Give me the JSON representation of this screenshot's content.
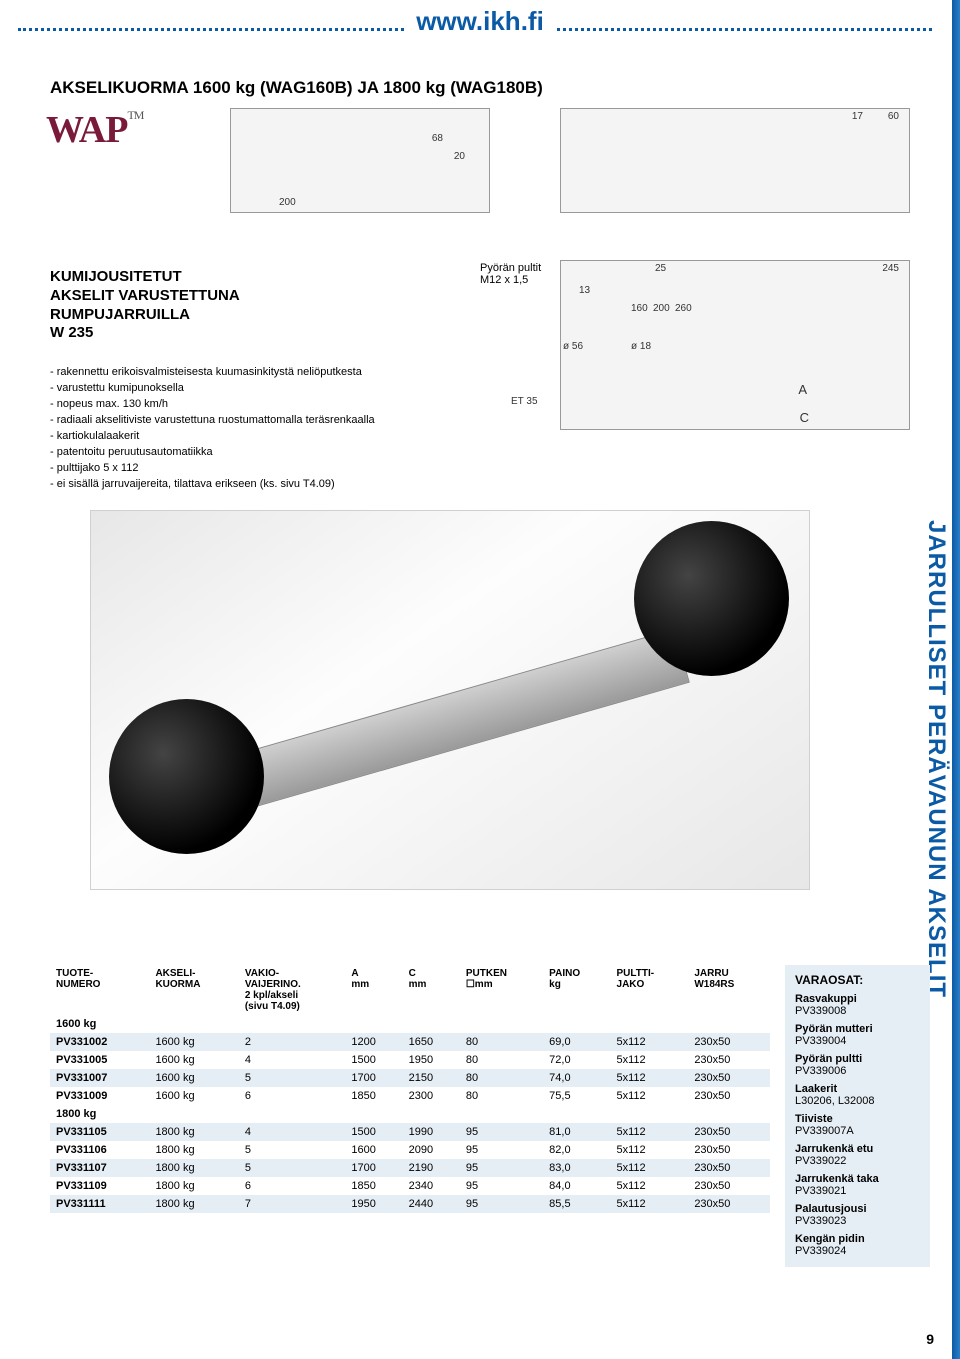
{
  "header_url": "www.ikh.fi",
  "main_title": "AKSELIKUORMA 1600 kg (WAG160B) JA 1800 kg (WAG180B)",
  "logo_text": "WAP",
  "logo_tm": "TM",
  "subheading_line1": "KUMIJOUSITETUT",
  "subheading_line2": "AKSELIT VARUSTETTUNA",
  "subheading_line3": "RUMPUJARRUILLA",
  "subheading_line4": "W 235",
  "features": [
    "rakennettu erikoisvalmisteisesta kuumasinkitystä neliöputkesta",
    "varustettu kumipunoksella",
    "nopeus max. 130 km/h",
    "radiaali akselitiviste varustettuna ruostumattomalla teräsrenkaalla",
    "kartiokulalaakerit",
    "patentoitu peruutusautomatiikka",
    "pulttijako 5 x 112",
    "ei sisällä jarruvaijereita, tilattava erikseen (ks. sivu T4.09)"
  ],
  "bolt_label1": "Pyörän pultit",
  "bolt_label2": "M12 x 1,5",
  "diag1": {
    "d1": "68",
    "d2": "20",
    "d3": "200"
  },
  "diag2": {
    "d1": "17",
    "d2": "60"
  },
  "diag3": {
    "d1": "25",
    "d2": "245",
    "d3": "13",
    "d4": "160",
    "d5": "200",
    "d6": "260",
    "d7": "ø 56",
    "d8": "ø 18",
    "d9": "ET 35",
    "a": "A",
    "c": "C"
  },
  "side_text": "JARRULLISET PERÄVAUNUN AKSELIT",
  "table": {
    "headers": {
      "c1a": "TUOTE-",
      "c1b": "NUMERO",
      "c2a": "AKSELI-",
      "c2b": "KUORMA",
      "c3a": "VAKIO-",
      "c3b": "VAIJERINO.",
      "c3c": "2 kpl/akseli",
      "c3d": "(sivu T4.09)",
      "c4a": "A",
      "c4b": "mm",
      "c5a": "C",
      "c5b": "mm",
      "c6a": "PUTKEN",
      "c6b": "☐mm",
      "c7a": "PAINO",
      "c7b": "kg",
      "c8a": "PULTTI-",
      "c8b": "JAKO",
      "c9a": "JARRU",
      "c9b": "W184RS"
    },
    "section1_label": "1600 kg",
    "rows1": [
      {
        "code": "PV331002",
        "load": "1600 kg",
        "wire": "2",
        "a": "1200",
        "c": "1650",
        "tube": "80",
        "weight": "69,0",
        "bolt": "5x112",
        "brake": "230x50"
      },
      {
        "code": "PV331005",
        "load": "1600 kg",
        "wire": "4",
        "a": "1500",
        "c": "1950",
        "tube": "80",
        "weight": "72,0",
        "bolt": "5x112",
        "brake": "230x50"
      },
      {
        "code": "PV331007",
        "load": "1600 kg",
        "wire": "5",
        "a": "1700",
        "c": "2150",
        "tube": "80",
        "weight": "74,0",
        "bolt": "5x112",
        "brake": "230x50"
      },
      {
        "code": "PV331009",
        "load": "1600 kg",
        "wire": "6",
        "a": "1850",
        "c": "2300",
        "tube": "80",
        "weight": "75,5",
        "bolt": "5x112",
        "brake": "230x50"
      }
    ],
    "section2_label": "1800 kg",
    "rows2": [
      {
        "code": "PV331105",
        "load": "1800 kg",
        "wire": "4",
        "a": "1500",
        "c": "1990",
        "tube": "95",
        "weight": "81,0",
        "bolt": "5x112",
        "brake": "230x50"
      },
      {
        "code": "PV331106",
        "load": "1800 kg",
        "wire": "5",
        "a": "1600",
        "c": "2090",
        "tube": "95",
        "weight": "82,0",
        "bolt": "5x112",
        "brake": "230x50"
      },
      {
        "code": "PV331107",
        "load": "1800 kg",
        "wire": "5",
        "a": "1700",
        "c": "2190",
        "tube": "95",
        "weight": "83,0",
        "bolt": "5x112",
        "brake": "230x50"
      },
      {
        "code": "PV331109",
        "load": "1800 kg",
        "wire": "6",
        "a": "1850",
        "c": "2340",
        "tube": "95",
        "weight": "84,0",
        "bolt": "5x112",
        "brake": "230x50"
      },
      {
        "code": "PV331111",
        "load": "1800 kg",
        "wire": "7",
        "a": "1950",
        "c": "2440",
        "tube": "95",
        "weight": "85,5",
        "bolt": "5x112",
        "brake": "230x50"
      }
    ]
  },
  "spares": {
    "heading": "VARAOSAT:",
    "items": [
      {
        "name": "Rasvakuppi",
        "code": "PV339008"
      },
      {
        "name": "Pyörän mutteri",
        "code": "PV339004"
      },
      {
        "name": "Pyörän pultti",
        "code": "PV339006"
      },
      {
        "name": "Laakerit",
        "code": "L30206, L32008"
      },
      {
        "name": "Tiiviste",
        "code": "PV339007A"
      },
      {
        "name": "Jarrukenkä etu",
        "code": "PV339022"
      },
      {
        "name": "Jarrukenkä taka",
        "code": "PV339021"
      },
      {
        "name": "Palautusjousi",
        "code": "PV339023"
      },
      {
        "name": "Kengän pidin",
        "code": "PV339024"
      }
    ]
  },
  "page_number": "9"
}
